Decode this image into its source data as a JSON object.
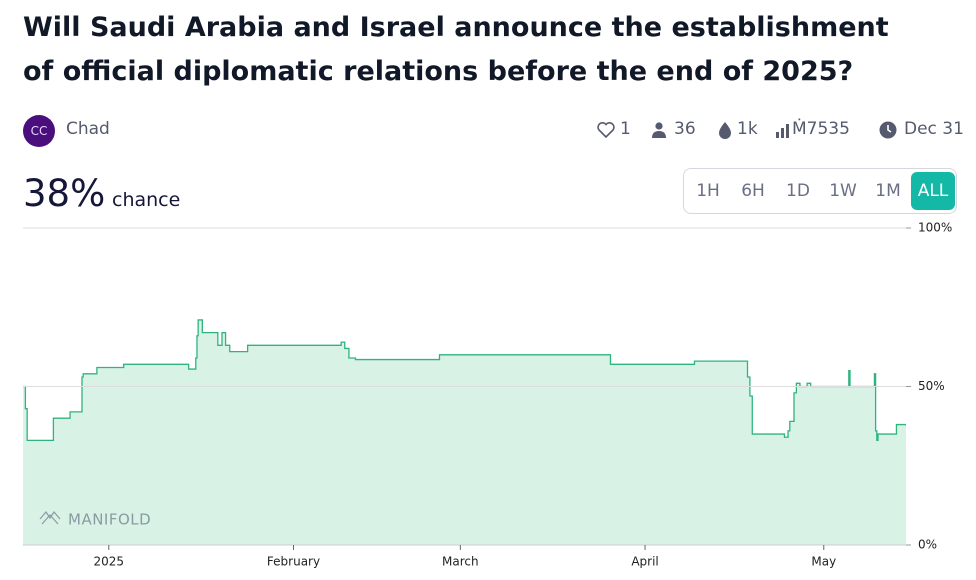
{
  "header": {
    "title": "Will Saudi Arabia and Israel announce the establishment of official diplomatic relations before the end of 2025?",
    "avatar": "CC",
    "author": "Chad",
    "stats": {
      "likes": "1",
      "traders": "36",
      "liquidity": "1k",
      "volume": "Ṁ7535",
      "close": "Dec 31"
    }
  },
  "probability": {
    "value": "38%",
    "label": "chance"
  },
  "ranges": [
    {
      "label": "1H"
    },
    {
      "label": "6H"
    },
    {
      "label": "1D"
    },
    {
      "label": "1W"
    },
    {
      "label": "1M"
    },
    {
      "label": "ALL",
      "active": true
    }
  ],
  "chart_data": {
    "type": "step-area",
    "watermark": "MANIFOLD",
    "color": "#2fb47f",
    "fill": "#d9f2e6",
    "x": [
      -14.4,
      -14,
      -13.7,
      -9.3,
      -6.5,
      -4.5,
      -4.3,
      -2,
      2.5,
      13.4,
      14.6,
      14.8,
      15,
      15.7,
      18.3,
      19,
      19.6,
      20.3,
      22.6,
      23.3,
      38.7,
      39,
      39.6,
      40.3,
      41.4,
      55.5,
      84.2,
      98.3,
      107.2,
      107.6,
      108,
      113.4,
      114,
      114.3,
      115,
      115.4,
      116,
      117.2,
      117.8,
      124.2,
      124.4,
      128.5,
      128.7,
      128.9,
      129.1,
      132.2,
      133.8
    ],
    "values": [
      50,
      43,
      33,
      40,
      42,
      53,
      54,
      56,
      57,
      55.5,
      59,
      66,
      71,
      67,
      63,
      67,
      63,
      61,
      61,
      63,
      63,
      64,
      62,
      59,
      58.5,
      60,
      57,
      58,
      53,
      47,
      35,
      34,
      36,
      39,
      48,
      51,
      50,
      51,
      50,
      55,
      50,
      54,
      36,
      33,
      35,
      38,
      38
    ],
    "xlim": [
      -14.4,
      133.8
    ],
    "ylim": [
      0,
      100
    ],
    "xticks": [
      {
        "value": 0,
        "label": "2025"
      },
      {
        "value": 31,
        "label": "February"
      },
      {
        "value": 59,
        "label": "March"
      },
      {
        "value": 90,
        "label": "April"
      },
      {
        "value": 120,
        "label": "May"
      }
    ],
    "yticks": [
      {
        "value": 0,
        "label": "0%"
      },
      {
        "value": 50,
        "label": "50%"
      },
      {
        "value": 100,
        "label": "100%"
      }
    ],
    "grid": true
  }
}
